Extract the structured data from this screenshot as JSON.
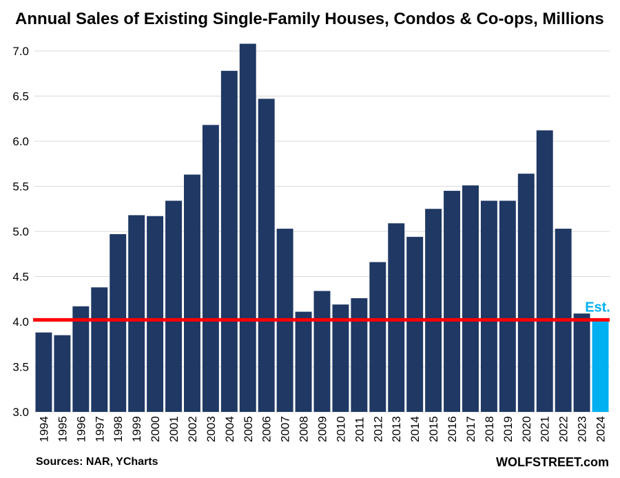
{
  "chart_data": {
    "type": "bar",
    "title": "Annual Sales of Existing Single-Family Houses, Condos & Co-ops, Millions",
    "categories": [
      "1994",
      "1995",
      "1996",
      "1997",
      "1998",
      "1999",
      "2000",
      "2001",
      "2002",
      "2003",
      "2004",
      "2005",
      "2006",
      "2007",
      "2008",
      "2009",
      "2010",
      "2011",
      "2012",
      "2013",
      "2014",
      "2015",
      "2016",
      "2017",
      "2018",
      "2019",
      "2020",
      "2021",
      "2022",
      "2023",
      "2024"
    ],
    "values": [
      3.88,
      3.85,
      4.17,
      4.38,
      4.97,
      5.18,
      5.17,
      5.34,
      5.63,
      6.18,
      6.78,
      7.08,
      6.47,
      5.03,
      4.11,
      4.34,
      4.19,
      4.26,
      4.66,
      5.09,
      4.94,
      5.25,
      5.45,
      5.51,
      5.34,
      5.34,
      5.64,
      6.12,
      5.03,
      4.09,
      4.02
    ],
    "estimate_index": 30,
    "estimate_label": "Est.",
    "reference_line": 4.02,
    "ylim": [
      3.0,
      7.0
    ],
    "yticks": [
      "3.0",
      "3.5",
      "4.0",
      "4.5",
      "5.0",
      "5.5",
      "6.0",
      "6.5",
      "7.0"
    ],
    "grid": true,
    "colors": {
      "bar": "#1F3864",
      "estimate_bar": "#00B0F0",
      "reference_line": "#FF0000",
      "grid": "#D9D9D9",
      "estimate_label": "#00B0F0"
    }
  },
  "footer": {
    "source": "Sources: NAR, YCharts",
    "brand": "WOLFSTREET.com"
  }
}
